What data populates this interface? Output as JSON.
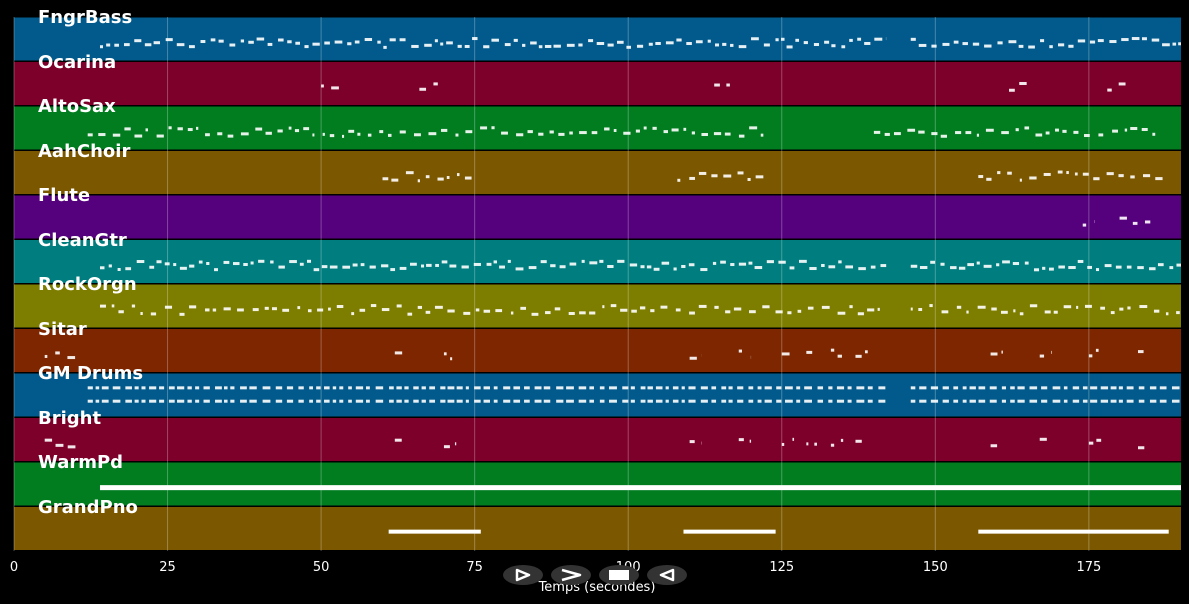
{
  "chart_data": {
    "type": "piano-roll",
    "xlabel": "Temps (secondes)",
    "xlim": [
      0,
      190
    ],
    "xticks": [
      0,
      25,
      50,
      75,
      100,
      125,
      150,
      175
    ],
    "grid": true,
    "tracks": [
      {
        "name": "FngrBass",
        "color": "#015a8b",
        "segments": [
          [
            14,
            142
          ],
          [
            146,
            190
          ]
        ]
      },
      {
        "name": "Ocarina",
        "color": "#7d002a",
        "segments": [
          [
            50,
            53
          ],
          [
            66,
            69
          ],
          [
            114,
            117
          ],
          [
            162,
            165
          ],
          [
            178,
            181
          ]
        ]
      },
      {
        "name": "AltoSax",
        "color": "#017d20",
        "segments": [
          [
            12,
            122
          ],
          [
            140,
            186
          ]
        ]
      },
      {
        "name": "AahChoir",
        "color": "#7b5700",
        "segments": [
          [
            60,
            75
          ],
          [
            108,
            122
          ],
          [
            157,
            187
          ]
        ]
      },
      {
        "name": "Flute",
        "color": "#55007d",
        "segments": [
          [
            174,
            176
          ],
          [
            180,
            185
          ]
        ]
      },
      {
        "name": "CleanGtr",
        "color": "#007d7e",
        "segments": [
          [
            14,
            142
          ],
          [
            146,
            190
          ]
        ]
      },
      {
        "name": "RockOrgn",
        "color": "#7d7d00",
        "segments": [
          [
            14,
            142
          ],
          [
            146,
            190
          ]
        ]
      },
      {
        "name": "Sitar",
        "color": "#7d2600",
        "segments": [
          [
            5,
            10
          ],
          [
            62,
            64
          ],
          [
            70,
            72
          ],
          [
            110,
            112
          ],
          [
            118,
            120
          ],
          [
            125,
            127
          ],
          [
            129,
            131
          ],
          [
            133,
            135
          ],
          [
            137,
            139
          ],
          [
            159,
            161
          ],
          [
            167,
            169
          ],
          [
            175,
            177
          ],
          [
            183,
            185
          ]
        ]
      },
      {
        "name": "GM Drums",
        "color": "#015a8b",
        "segments": [
          [
            12,
            142
          ],
          [
            146,
            190
          ]
        ]
      },
      {
        "name": "Bright",
        "color": "#7d002a",
        "segments": [
          [
            5,
            10
          ],
          [
            62,
            64
          ],
          [
            70,
            72
          ],
          [
            110,
            112
          ],
          [
            118,
            120
          ],
          [
            125,
            127
          ],
          [
            129,
            131
          ],
          [
            133,
            135
          ],
          [
            137,
            139
          ],
          [
            159,
            161
          ],
          [
            167,
            169
          ],
          [
            175,
            177
          ],
          [
            183,
            185
          ]
        ]
      },
      {
        "name": "WarmPd",
        "color": "#017d20",
        "segments": [
          [
            14,
            190
          ]
        ]
      },
      {
        "name": "GrandPno",
        "color": "#7b5700",
        "segments": [
          [
            61,
            76
          ],
          [
            109,
            124
          ],
          [
            157,
            188
          ]
        ]
      }
    ]
  },
  "controls": {
    "skip_start_icon": "skip-start-icon",
    "play_icon": "play-icon",
    "stop_icon": "stop-icon",
    "rewind_icon": "rewind-icon"
  }
}
